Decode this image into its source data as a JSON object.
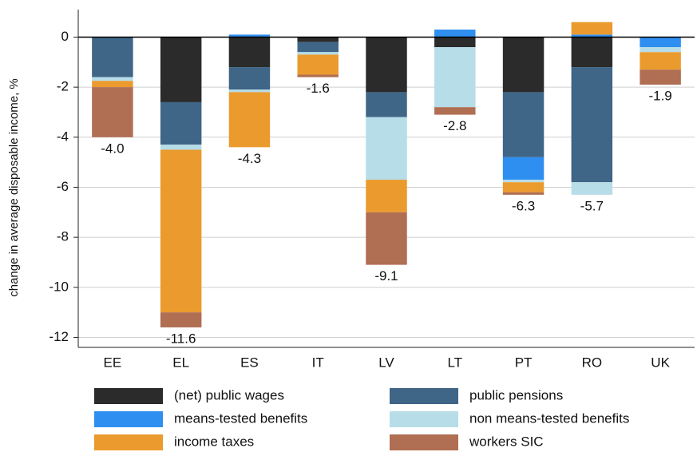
{
  "chart_data": {
    "type": "stacked_bar",
    "y_label": "change in average disposable income, %",
    "categories": [
      "EE",
      "EL",
      "ES",
      "IT",
      "LV",
      "LT",
      "PT",
      "RO",
      "UK"
    ],
    "series": [
      {
        "name": "(net) public wages",
        "color": "#2b2b2b",
        "values": [
          null,
          -2.6,
          -1.2,
          -0.2,
          -2.2,
          -0.4,
          -2.2,
          -1.2,
          null
        ]
      },
      {
        "name": "public pensions",
        "color": "#3f6587",
        "values": [
          -1.6,
          -1.7,
          -0.9,
          -0.4,
          -1.0,
          null,
          -2.6,
          -4.6,
          null
        ]
      },
      {
        "name": "means-tested benefits",
        "color": "#2e8ff0",
        "values": [
          null,
          null,
          0.1,
          null,
          null,
          0.3,
          -0.9,
          0.1,
          -0.4
        ]
      },
      {
        "name": "non means-tested benefits",
        "color": "#b7dde8",
        "values": [
          -0.15,
          -0.2,
          -0.1,
          -0.1,
          -2.5,
          -2.4,
          -0.1,
          -0.5,
          -0.2
        ]
      },
      {
        "name": "income taxes",
        "color": "#eb9a2e",
        "values": [
          -0.25,
          -6.5,
          -2.2,
          -0.8,
          -1.3,
          null,
          -0.4,
          0.5,
          -0.7
        ]
      },
      {
        "name": "workers SIC",
        "color": "#b06e52",
        "values": [
          -2.0,
          -0.6,
          null,
          -0.1,
          -2.1,
          -0.3,
          -0.1,
          null,
          -0.6
        ]
      }
    ],
    "totals": [
      -4.0,
      -11.6,
      -4.3,
      -1.6,
      -9.1,
      -2.8,
      -6.3,
      -5.7,
      -1.9
    ],
    "total_labels": [
      "-4.0",
      "-11.6",
      "-4.3",
      "-1.6",
      "-9.1",
      "-2.8",
      "-6.3",
      "-5.7",
      "-1.9"
    ],
    "ylim": [
      -12.4,
      1.1
    ],
    "yticks": [
      -12,
      -10,
      -8,
      -6,
      -4,
      -2,
      0
    ],
    "grid": true
  }
}
